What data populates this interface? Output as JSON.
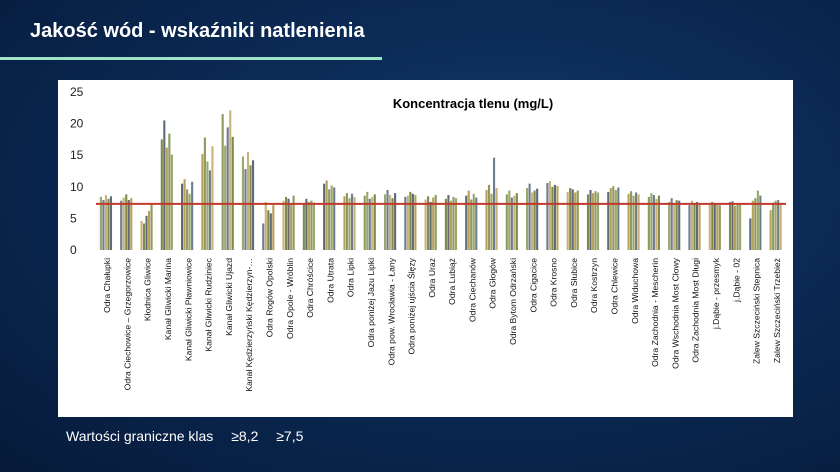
{
  "slide": {
    "title": "Jakość wód - wskaźniki natlenienia",
    "footer_label": "Wartości graniczne klas",
    "threshold_1": "≥8,2",
    "threshold_2": "≥7,5"
  },
  "colors": {
    "accent_line": "#9fe3c9",
    "threshold_line": "#c0392b",
    "bar_palette": [
      "#9aa86a",
      "#6f7d8c",
      "#c8b27a",
      "#7f8a4e",
      "#5e6b78",
      "#b8a05a",
      "#8e9a5f"
    ]
  },
  "chart_data": {
    "type": "bar",
    "title": "Koncentracja tlenu (mg/L)",
    "xlabel": "",
    "ylabel": "",
    "ylim": [
      0,
      25
    ],
    "yticks": [
      0,
      5,
      10,
      15,
      20,
      25
    ],
    "grid": false,
    "threshold_value": 7.3,
    "categories": [
      "Odra Chałupki",
      "Odra Ciechowice – Grzegorzowice",
      "Kłodnica Gliwice",
      "Kanał Gliwicki Marina",
      "Kanał Gliwicki Pławniowice",
      "Kanał Gliwicki Rudziniec",
      "Kanał Gliwicki Ujazd",
      "Kanał Kędzierzyński Kędzierzyn-…",
      "Odra Rogów Opolski",
      "Odra Opole - Wróblin",
      "Odra Chróścice",
      "Odra Utrata",
      "Odra Lipki",
      "Odra poniżej Jazu Lipki",
      "Odra pow. Wrocławia - Łany",
      "Odra poniżej ujścia Ślęzy",
      "Odra Uraz",
      "Odra Lubiąż",
      "Odra Ciechanów",
      "Odra Głogów",
      "Odra Bytom Odrzański",
      "Odra Cigacice",
      "Odra Krosno",
      "Odra Słubice",
      "Odra Kostrzyn",
      "Odra Chlewice",
      "Odra Widuchowa",
      "Odra Zachodnia - Mescherin",
      "Odra Wschodnia Most Cłowy",
      "Odra Zachodnia Most Długi",
      "j.Dąbie - przesmyk",
      "j.Dąbie - 02",
      "Zalew Szczeciński Stepnica",
      "Zalew Szczeciński Trzebież"
    ],
    "series": [
      {
        "values": [
          8.4,
          7.8,
          4.6,
          17.5,
          10.5,
          15.2,
          21.5,
          14.8,
          4.2,
          7.8,
          7.2,
          10.5,
          8.5,
          8.6,
          8.8,
          8.4,
          8.0,
          8.1,
          8.6,
          9.5,
          8.8,
          9.8,
          10.6,
          9.2,
          8.8,
          9.2,
          8.9,
          8.4,
          7.6,
          7.1,
          7.2,
          7.6,
          5.0,
          6.3
        ]
      },
      {
        "values": [
          7.9,
          8.3,
          4.2,
          20.5,
          11.2,
          17.8,
          16.5,
          12.8,
          7.6,
          8.4,
          8.1,
          11.0,
          9.0,
          9.2,
          9.5,
          8.6,
          8.5,
          8.7,
          9.4,
          10.3,
          9.4,
          10.5,
          10.9,
          9.8,
          9.5,
          9.8,
          9.3,
          9.0,
          8.2,
          7.8,
          7.6,
          7.7,
          7.8,
          7.5
        ]
      },
      {
        "values": [
          8.7,
          8.8,
          5.4,
          16.2,
          9.6,
          14.0,
          19.4,
          15.5,
          6.3,
          8.1,
          7.6,
          9.6,
          8.2,
          8.1,
          8.7,
          9.2,
          7.6,
          7.8,
          8.0,
          8.9,
          8.3,
          9.1,
          10.0,
          9.6,
          9.0,
          10.1,
          8.6,
          8.7,
          7.4,
          7.3,
          7.4,
          7.0,
          8.2,
          7.8
        ]
      },
      {
        "values": [
          8.1,
          7.9,
          6.2,
          18.4,
          8.9,
          12.6,
          22.1,
          13.4,
          5.8,
          7.4,
          7.8,
          10.2,
          8.9,
          8.4,
          8.2,
          8.9,
          8.3,
          8.4,
          8.9,
          14.6,
          8.6,
          9.4,
          10.3,
          9.1,
          9.3,
          9.5,
          9.1,
          8.1,
          7.9,
          7.6,
          7.3,
          7.4,
          9.4,
          7.9
        ]
      },
      {
        "values": [
          8.5,
          8.2,
          7.2,
          15.1,
          10.8,
          16.4,
          17.9,
          14.2,
          7.1,
          8.6,
          7.5,
          9.9,
          8.4,
          8.8,
          9.0,
          8.7,
          8.7,
          8.2,
          8.3,
          9.8,
          9.0,
          9.7,
          10.1,
          9.4,
          9.1,
          9.9,
          8.8,
          8.6,
          7.8,
          7.4,
          7.1,
          7.2,
          8.6,
          7.4
        ]
      }
    ]
  }
}
